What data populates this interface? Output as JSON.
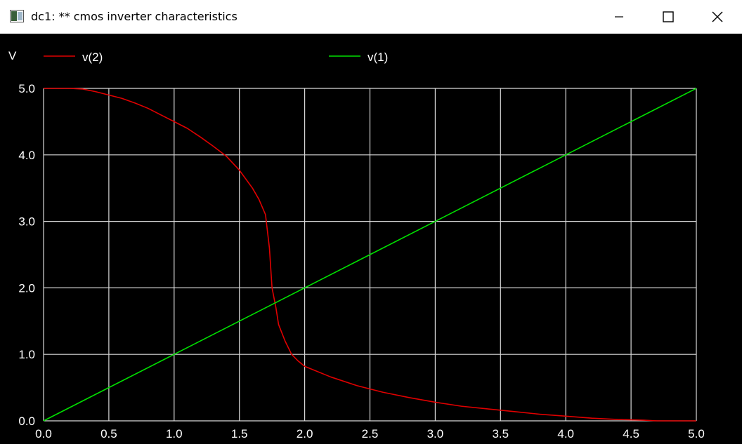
{
  "window": {
    "title": "dc1: ** cmos inverter characteristics",
    "controls": {
      "minimize": "minimize-icon",
      "maximize": "maximize-icon",
      "close": "close-icon"
    }
  },
  "chart_data": {
    "type": "line",
    "ylabel": "V",
    "xlim": [
      0,
      5
    ],
    "ylim": [
      0,
      5
    ],
    "xticks": [
      "0.0",
      "0.5",
      "1.0",
      "1.5",
      "2.0",
      "2.5",
      "3.0",
      "3.5",
      "4.0",
      "4.5",
      "5.0"
    ],
    "yticks": [
      "0.0",
      "1.0",
      "2.0",
      "3.0",
      "4.0",
      "5.0"
    ],
    "grid": true,
    "legend_placement": "top",
    "background": "#000000",
    "grid_color": "#d9d9d9",
    "series": [
      {
        "name": "v(2)",
        "color": "#e00000",
        "points": [
          [
            0.0,
            5.0
          ],
          [
            0.1,
            5.0
          ],
          [
            0.2,
            5.0
          ],
          [
            0.3,
            4.99
          ],
          [
            0.4,
            4.95
          ],
          [
            0.5,
            4.9
          ],
          [
            0.6,
            4.85
          ],
          [
            0.7,
            4.78
          ],
          [
            0.8,
            4.7
          ],
          [
            0.9,
            4.6
          ],
          [
            1.0,
            4.5
          ],
          [
            1.1,
            4.4
          ],
          [
            1.2,
            4.27
          ],
          [
            1.3,
            4.13
          ],
          [
            1.4,
            3.98
          ],
          [
            1.5,
            3.77
          ],
          [
            1.6,
            3.5
          ],
          [
            1.65,
            3.33
          ],
          [
            1.7,
            3.1
          ],
          [
            1.73,
            2.6
          ],
          [
            1.75,
            2.0
          ],
          [
            1.78,
            1.7
          ],
          [
            1.8,
            1.45
          ],
          [
            1.85,
            1.2
          ],
          [
            1.9,
            1.0
          ],
          [
            1.95,
            0.9
          ],
          [
            2.0,
            0.82
          ],
          [
            2.2,
            0.66
          ],
          [
            2.4,
            0.53
          ],
          [
            2.6,
            0.43
          ],
          [
            2.8,
            0.35
          ],
          [
            3.0,
            0.28
          ],
          [
            3.2,
            0.22
          ],
          [
            3.4,
            0.18
          ],
          [
            3.6,
            0.14
          ],
          [
            3.8,
            0.1
          ],
          [
            4.0,
            0.07
          ],
          [
            4.2,
            0.04
          ],
          [
            4.4,
            0.02
          ],
          [
            4.6,
            0.01
          ],
          [
            4.7,
            0.0
          ],
          [
            5.0,
            0.0
          ]
        ]
      },
      {
        "name": "v(1)",
        "color": "#00e000",
        "points": [
          [
            0.0,
            0.0
          ],
          [
            5.0,
            5.0
          ]
        ]
      }
    ]
  }
}
